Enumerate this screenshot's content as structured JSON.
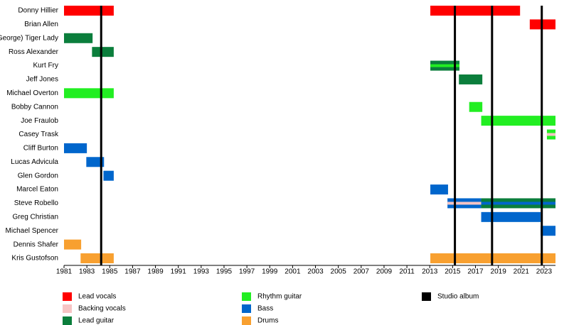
{
  "chart_data": {
    "type": "timeline",
    "xlim": [
      1981,
      2024
    ],
    "xticks": [
      1981,
      1983,
      1985,
      1987,
      1989,
      1991,
      1993,
      1995,
      1997,
      1999,
      2001,
      2003,
      2005,
      2007,
      2009,
      2011,
      2013,
      2015,
      2017,
      2019,
      2021,
      2023
    ],
    "roles": [
      {
        "name": "Lead vocals",
        "color": "#ff0000"
      },
      {
        "name": "Backing vocals",
        "color": "#f7c4c4"
      },
      {
        "name": "Lead guitar",
        "color": "#0b7e3c"
      },
      {
        "name": "Rhythm guitar",
        "color": "#22ee22"
      },
      {
        "name": "Bass",
        "color": "#0066cc"
      },
      {
        "name": "Drums",
        "color": "#f8a030"
      }
    ],
    "album_label": "Studio album",
    "album_color": "#000000",
    "albums": [
      1984.25,
      2015.2,
      2018.45,
      2022.8
    ],
    "members": [
      {
        "name": "Donny Hillier",
        "periods": [
          {
            "role": 0,
            "start": 1981,
            "end": 1985.35
          },
          {
            "role": 0,
            "start": 2013.05,
            "end": 2020.9
          }
        ]
      },
      {
        "name": "Brian Allen",
        "periods": [
          {
            "role": 0,
            "start": 2021.75,
            "end": 2024
          }
        ]
      },
      {
        "name": "(George) Tiger Lady",
        "periods": [
          {
            "role": 2,
            "start": 1981,
            "end": 1983.5
          }
        ]
      },
      {
        "name": "Ross Alexander",
        "periods": [
          {
            "role": 2,
            "start": 1983.45,
            "end": 1985.35
          }
        ]
      },
      {
        "name": "Kurt Fry",
        "periods": [
          {
            "role": 2,
            "stripe": 3,
            "start": 2013.05,
            "end": 2015.6
          }
        ]
      },
      {
        "name": "Jeff Jones",
        "periods": [
          {
            "role": 2,
            "start": 2015.55,
            "end": 2017.6
          }
        ]
      },
      {
        "name": "Michael Overton",
        "periods": [
          {
            "role": 3,
            "start": 1981,
            "end": 1985.35
          }
        ]
      },
      {
        "name": "Bobby Cannon",
        "periods": [
          {
            "role": 3,
            "start": 2016.45,
            "end": 2017.6
          }
        ]
      },
      {
        "name": "Joe Fraulob",
        "periods": [
          {
            "role": 3,
            "start": 2017.5,
            "end": 2024
          }
        ]
      },
      {
        "name": "Casey Trask",
        "periods": [
          {
            "role": 3,
            "stripe": 1,
            "start": 2023.25,
            "end": 2024
          }
        ]
      },
      {
        "name": "Cliff Burton",
        "periods": [
          {
            "role": 4,
            "start": 1981,
            "end": 1983
          }
        ]
      },
      {
        "name": "Lucas Advicula",
        "periods": [
          {
            "role": 4,
            "start": 1982.95,
            "end": 1984.5
          }
        ]
      },
      {
        "name": "Glen Gordon",
        "periods": [
          {
            "role": 4,
            "start": 1984.45,
            "end": 1985.35
          }
        ]
      },
      {
        "name": "Marcel Eaton",
        "periods": [
          {
            "role": 4,
            "start": 2013.05,
            "end": 2014.6
          }
        ]
      },
      {
        "name": "Steve Robello",
        "periods": [
          {
            "role": 4,
            "stripe": 1,
            "start": 2014.55,
            "end": 2017.5
          },
          {
            "role": 2,
            "stripe": 4,
            "start": 2017.5,
            "end": 2024
          }
        ]
      },
      {
        "name": "Greg Christian",
        "periods": [
          {
            "role": 4,
            "start": 2017.5,
            "end": 2022.7
          }
        ]
      },
      {
        "name": "Michael Spencer",
        "periods": [
          {
            "role": 4,
            "start": 2022.7,
            "end": 2024
          }
        ]
      },
      {
        "name": "Dennis Shafer",
        "periods": [
          {
            "role": 5,
            "start": 1981,
            "end": 1982.5
          }
        ]
      },
      {
        "name": "Kris Gustofson",
        "periods": [
          {
            "role": 5,
            "start": 1982.45,
            "end": 1985.35
          },
          {
            "role": 5,
            "start": 2013.05,
            "end": 2024
          }
        ]
      }
    ]
  }
}
